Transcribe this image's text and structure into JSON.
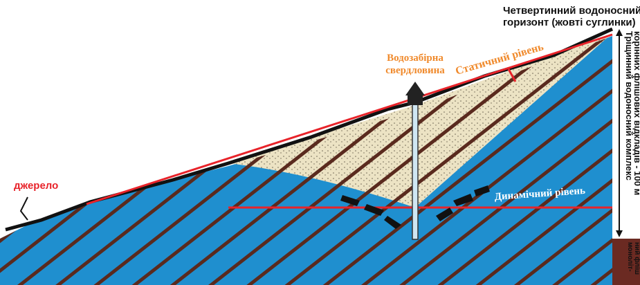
{
  "labels": {
    "aquifer_top": [
      "Четвертинний водоносний",
      "горизонт (жовті суглинки)"
    ],
    "well": [
      "Водозабірна",
      "свердловина"
    ],
    "static_level": "Статичний рівень",
    "spring": "джерело",
    "dynamic_level": "Динамічний рівень",
    "fissure_complex": [
      "Тріщинний водоносний комплекс",
      "корінних флішових відкладів - 100 м"
    ],
    "monolith": [
      "моноліт-",
      "ний фліш"
    ]
  }
}
